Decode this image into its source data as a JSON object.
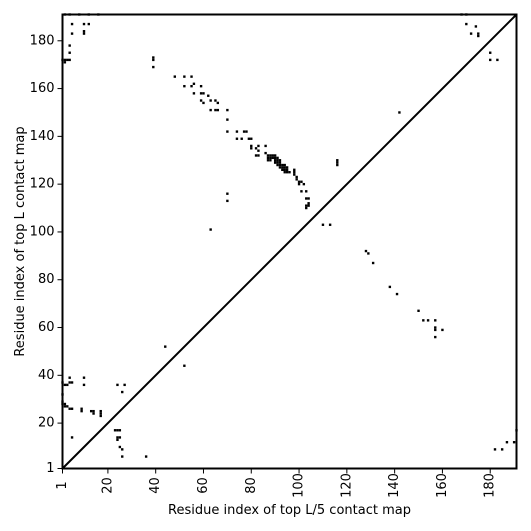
{
  "chart_data": {
    "type": "scatter",
    "title": "",
    "xlabel": "Residue index of top L/5 contact map",
    "ylabel": "Residue index of top L contact map",
    "xlim": [
      1,
      191
    ],
    "ylim": [
      1,
      191
    ],
    "xticks": [
      1,
      20,
      40,
      60,
      80,
      100,
      120,
      140,
      160,
      180
    ],
    "yticks": [
      1,
      20,
      40,
      60,
      80,
      100,
      120,
      140,
      160,
      180
    ],
    "diagonal": true,
    "marker": "square",
    "color": "#000000",
    "upper_triangle_points": [
      [
        2,
        191
      ],
      [
        4,
        191
      ],
      [
        8,
        191
      ],
      [
        12,
        191
      ],
      [
        16,
        191
      ],
      [
        5,
        187
      ],
      [
        10,
        187
      ],
      [
        12,
        187
      ],
      [
        5,
        183
      ],
      [
        10,
        183
      ],
      [
        10,
        184
      ],
      [
        4,
        178
      ],
      [
        4,
        175
      ],
      [
        1,
        172
      ],
      [
        2,
        172
      ],
      [
        3,
        172
      ],
      [
        4,
        172
      ],
      [
        2,
        171
      ],
      [
        39,
        173
      ],
      [
        39,
        172
      ],
      [
        39,
        169
      ],
      [
        48,
        165
      ],
      [
        52,
        165
      ],
      [
        55,
        165
      ],
      [
        52,
        161
      ],
      [
        55,
        161
      ],
      [
        56,
        162
      ],
      [
        59,
        161
      ],
      [
        56,
        158
      ],
      [
        59,
        158
      ],
      [
        60,
        158
      ],
      [
        62,
        157
      ],
      [
        59,
        155
      ],
      [
        60,
        154
      ],
      [
        63,
        155
      ],
      [
        65,
        155
      ],
      [
        66,
        154
      ],
      [
        63,
        151
      ],
      [
        65,
        151
      ],
      [
        66,
        151
      ],
      [
        70,
        151
      ],
      [
        70,
        147
      ],
      [
        70,
        142
      ],
      [
        74,
        142
      ],
      [
        77,
        142
      ],
      [
        78,
        142
      ],
      [
        74,
        139
      ],
      [
        76,
        139
      ],
      [
        79,
        139
      ],
      [
        80,
        139
      ],
      [
        80,
        136
      ],
      [
        80,
        135
      ],
      [
        82,
        135
      ],
      [
        83,
        136
      ],
      [
        83,
        134
      ],
      [
        86,
        136
      ],
      [
        82,
        132
      ],
      [
        83,
        132
      ],
      [
        86,
        133
      ],
      [
        87,
        132
      ],
      [
        88,
        132
      ],
      [
        89,
        132
      ],
      [
        90,
        132
      ],
      [
        87,
        131
      ],
      [
        88,
        131
      ],
      [
        89,
        131
      ],
      [
        90,
        131
      ],
      [
        91,
        131
      ],
      [
        87,
        130
      ],
      [
        88,
        130
      ],
      [
        90,
        130
      ],
      [
        91,
        130
      ],
      [
        92,
        130
      ],
      [
        90,
        129
      ],
      [
        91,
        129
      ],
      [
        92,
        129
      ],
      [
        91,
        128
      ],
      [
        92,
        128
      ],
      [
        93,
        128
      ],
      [
        94,
        128
      ],
      [
        92,
        127
      ],
      [
        93,
        127
      ],
      [
        94,
        127
      ],
      [
        95,
        127
      ],
      [
        93,
        126
      ],
      [
        94,
        126
      ],
      [
        95,
        126
      ],
      [
        98,
        126
      ],
      [
        94,
        125
      ],
      [
        95,
        125
      ],
      [
        96,
        125
      ],
      [
        98,
        125
      ],
      [
        98,
        124
      ],
      [
        99,
        123
      ],
      [
        99,
        122
      ],
      [
        100,
        121
      ],
      [
        101,
        121
      ],
      [
        100,
        120
      ],
      [
        102,
        120
      ],
      [
        101,
        117
      ],
      [
        103,
        117
      ],
      [
        103,
        114
      ],
      [
        104,
        114
      ],
      [
        104,
        112
      ],
      [
        103,
        111
      ],
      [
        104,
        111
      ],
      [
        103,
        110
      ],
      [
        116,
        130
      ],
      [
        116,
        129
      ],
      [
        116,
        128
      ],
      [
        70,
        116
      ],
      [
        70,
        113
      ],
      [
        63,
        101
      ],
      [
        110,
        103
      ],
      [
        113,
        103
      ],
      [
        128,
        92
      ],
      [
        129,
        91
      ],
      [
        131,
        87
      ],
      [
        138,
        77
      ],
      [
        141,
        74
      ],
      [
        142,
        150
      ],
      [
        150,
        67
      ],
      [
        152,
        63
      ],
      [
        154,
        63
      ],
      [
        157,
        60
      ],
      [
        157,
        59
      ],
      [
        157,
        56
      ],
      [
        160,
        59
      ],
      [
        157,
        63
      ],
      [
        168,
        191
      ],
      [
        170,
        191
      ],
      [
        170,
        187
      ],
      [
        172,
        183
      ],
      [
        175,
        183
      ],
      [
        175,
        182
      ],
      [
        174,
        186
      ],
      [
        180,
        175
      ],
      [
        180,
        172
      ],
      [
        183,
        172
      ]
    ],
    "lower_triangle_points": [
      [
        1,
        37
      ],
      [
        2,
        36
      ],
      [
        3,
        36
      ],
      [
        4,
        37
      ],
      [
        5,
        37
      ],
      [
        4,
        39
      ],
      [
        10,
        39
      ],
      [
        10,
        36
      ],
      [
        1,
        32
      ],
      [
        1,
        29
      ],
      [
        1,
        28
      ],
      [
        2,
        28
      ],
      [
        2,
        27
      ],
      [
        3,
        27
      ],
      [
        4,
        26
      ],
      [
        5,
        26
      ],
      [
        9,
        26
      ],
      [
        9,
        25
      ],
      [
        13,
        25
      ],
      [
        14,
        25
      ],
      [
        14,
        24
      ],
      [
        17,
        25
      ],
      [
        17,
        24
      ],
      [
        17,
        23
      ],
      [
        5,
        14
      ],
      [
        23,
        17
      ],
      [
        24,
        17
      ],
      [
        25,
        17
      ],
      [
        24,
        14
      ],
      [
        25,
        14
      ],
      [
        24,
        13
      ],
      [
        24,
        36
      ],
      [
        27,
        36
      ],
      [
        26,
        33
      ],
      [
        25,
        10
      ],
      [
        26,
        9
      ],
      [
        26,
        6
      ],
      [
        36,
        6
      ],
      [
        44,
        52
      ],
      [
        52,
        44
      ],
      [
        182,
        9
      ],
      [
        185,
        9
      ],
      [
        187,
        12
      ],
      [
        190,
        12
      ],
      [
        191,
        17
      ]
    ]
  }
}
